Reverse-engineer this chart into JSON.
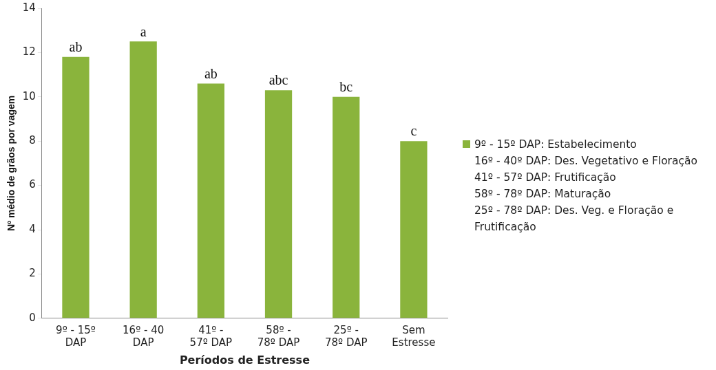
{
  "chart_data": {
    "type": "bar",
    "xlabel": "Períodos de Estresse",
    "ylabel": "Nº médio de grãos por vagem",
    "categories": [
      "9º - 15º DAP",
      "16º - 40 DAP",
      "41º - 57º DAP",
      "58º - 78º DAP",
      "25º - 78º DAP",
      "Sem Estresse"
    ],
    "series": [
      {
        "name": "9º - 15º DAP: Estabelecimento",
        "color": "#8ab43c",
        "values": [
          11.8,
          12.5,
          10.6,
          10.3,
          10.0,
          8.0
        ]
      }
    ],
    "ylim": [
      0,
      14
    ],
    "yticks": [
      0,
      2,
      4,
      6,
      8,
      10,
      12,
      14
    ],
    "grid": false,
    "legend": "right",
    "annotations": [
      {
        "text": "ab",
        "x": "9º - 15º DAP",
        "y": 11.8
      },
      {
        "text": "a",
        "x": "16º - 40 DAP",
        "y": 12.5
      },
      {
        "text": "ab",
        "x": "41º - 57º DAP",
        "y": 10.6
      },
      {
        "text": "abc",
        "x": "58º - 78º DAP",
        "y": 10.3
      },
      {
        "text": "bc",
        "x": "25º - 78º DAP",
        "y": 10.0
      },
      {
        "text": "c",
        "x": "Sem Estresse",
        "y": 8.0
      },
      "16º - 40º DAP: Des. Vegetativo e Floração",
      "41º - 57º DAP: Frutificação",
      "58º - 78º DAP: Maturação",
      "25º - 78º DAP: Des. Veg. e Floração e Frutificação"
    ]
  }
}
